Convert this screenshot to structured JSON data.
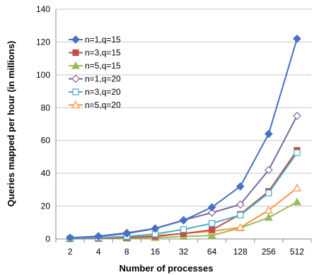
{
  "chart_data": {
    "type": "line",
    "title": "",
    "xlabel": "Number of processes",
    "ylabel": "Queries mapped per hour (in millions)",
    "categories": [
      "2",
      "4",
      "8",
      "16",
      "32",
      "64",
      "128",
      "256",
      "512"
    ],
    "ylim": [
      0,
      140
    ],
    "yticks": [
      0,
      20,
      40,
      60,
      80,
      100,
      120,
      140
    ],
    "grid": "horizontal",
    "legend_position": "top-left",
    "series": [
      {
        "name": "n=1,q=15",
        "color": "#4472C4",
        "marker": "diamond",
        "values": [
          0.7,
          1.5,
          3.3,
          6.3,
          11.3,
          19.3,
          32.0,
          64.0,
          122.0
        ]
      },
      {
        "name": "n=3,q=15",
        "color": "#C0504D",
        "marker": "square",
        "values": [
          0.2,
          0.4,
          0.8,
          1.6,
          3.3,
          5.5,
          15.0,
          29.0,
          54.0
        ]
      },
      {
        "name": "n=5,q=15",
        "color": "#9BBB59",
        "marker": "triangle",
        "values": [
          0.1,
          0.2,
          0.4,
          0.8,
          1.5,
          2.1,
          6.7,
          13.0,
          22.5
        ]
      },
      {
        "name": "n=1,q=20",
        "color": "#8064A2",
        "marker": "diamond-open",
        "values": [
          0.7,
          1.7,
          3.7,
          6.4,
          11.5,
          16.0,
          21.0,
          42.0,
          75.0
        ]
      },
      {
        "name": "n=3,q=20",
        "color": "#4BACC6",
        "marker": "square-open",
        "values": [
          0.3,
          0.7,
          1.5,
          3.0,
          5.8,
          9.5,
          14.5,
          28.0,
          52.5
        ]
      },
      {
        "name": "n=5,q=20",
        "color": "#F79646",
        "marker": "triangle-open",
        "values": [
          0.2,
          0.4,
          0.9,
          2.0,
          3.3,
          4.7,
          7.0,
          17.5,
          31.0
        ]
      }
    ]
  }
}
